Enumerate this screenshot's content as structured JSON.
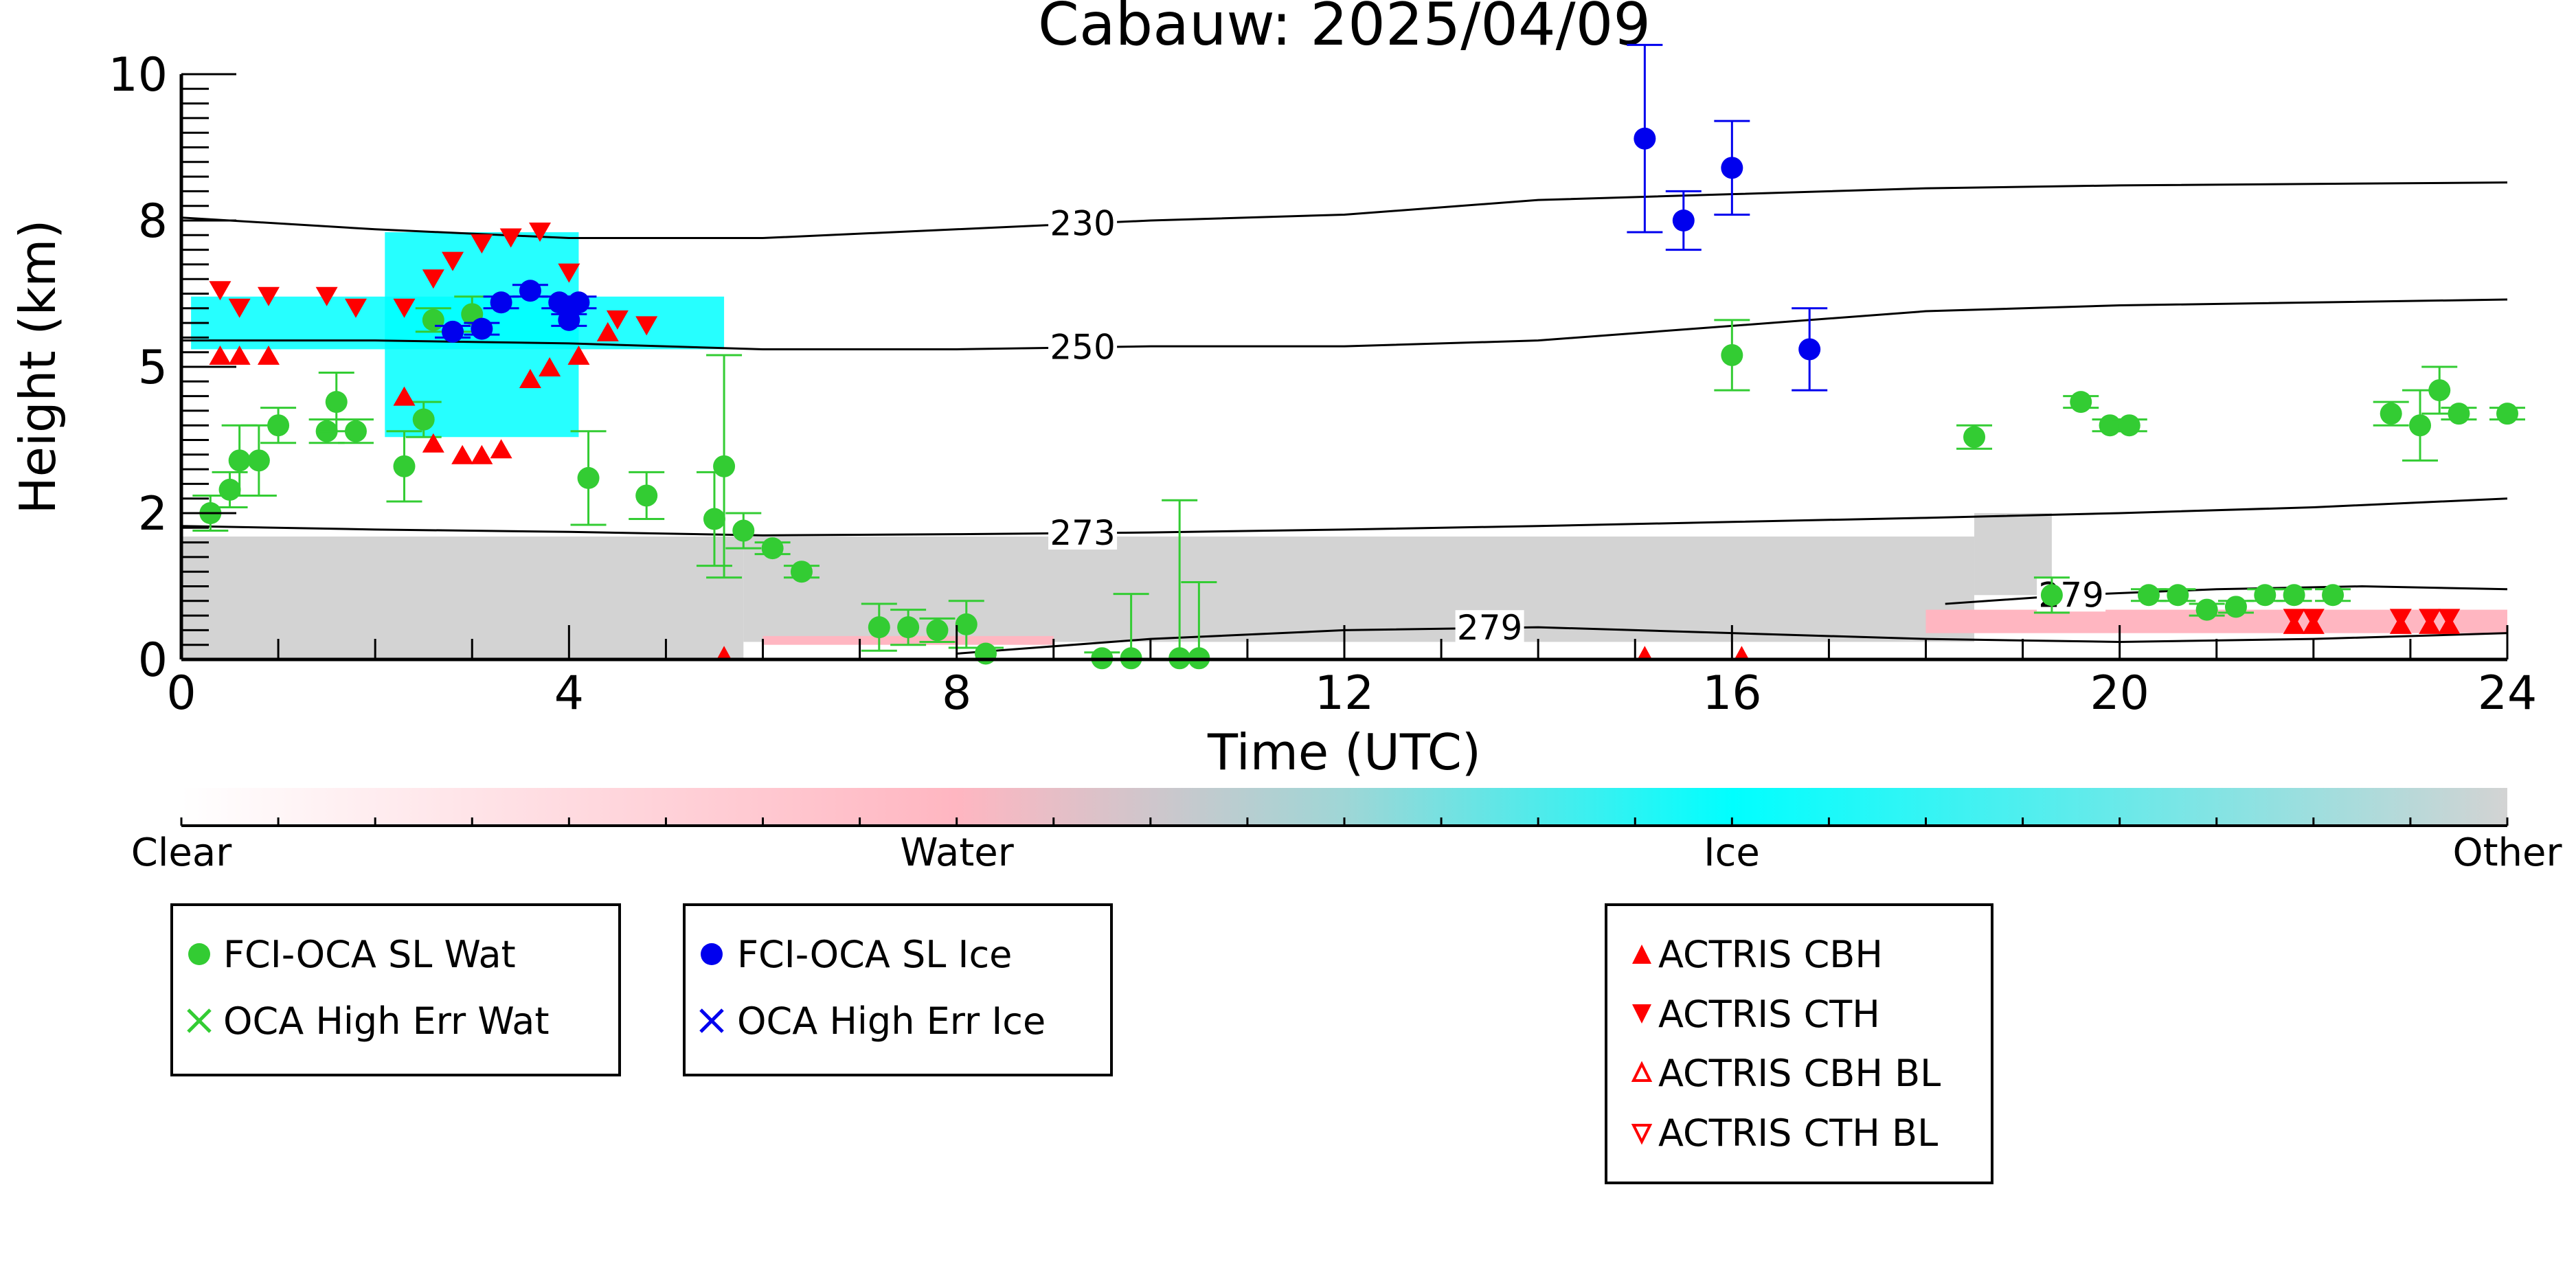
{
  "chart_data": {
    "type": "scatter",
    "title": "Cabauw: 2025/04/09",
    "xlabel": "Time (UTC)",
    "ylabel": "Height (km)",
    "xlim": [
      0,
      24
    ],
    "ylim": [
      0,
      10
    ],
    "x_ticks": [
      0,
      4,
      8,
      12,
      16,
      20,
      24
    ],
    "y_ticks": [
      {
        "v": 0,
        "label": "0"
      },
      {
        "v": 2.5,
        "label": "2"
      },
      {
        "v": 5,
        "label": "5"
      },
      {
        "v": 7.5,
        "label": "8"
      },
      {
        "v": 10,
        "label": "10"
      }
    ],
    "colorbar": {
      "labels": [
        "Clear",
        "Water",
        "Ice",
        "Other"
      ],
      "colors": [
        "#ffffff",
        "#ffb6c1",
        "#00ffff",
        "#d3d3d3"
      ]
    },
    "temperature_contours": [
      {
        "label": "230",
        "label_x": 9.3,
        "points": [
          [
            0,
            7.55
          ],
          [
            2,
            7.35
          ],
          [
            4,
            7.2
          ],
          [
            6,
            7.2
          ],
          [
            8,
            7.35
          ],
          [
            10,
            7.5
          ],
          [
            12,
            7.6
          ],
          [
            14,
            7.85
          ],
          [
            16,
            7.95
          ],
          [
            18,
            8.05
          ],
          [
            20,
            8.1
          ],
          [
            24,
            8.15
          ]
        ]
      },
      {
        "label": "250",
        "label_x": 9.3,
        "points": [
          [
            0,
            5.45
          ],
          [
            2,
            5.45
          ],
          [
            4,
            5.4
          ],
          [
            6,
            5.3
          ],
          [
            8,
            5.3
          ],
          [
            10,
            5.35
          ],
          [
            12,
            5.35
          ],
          [
            14,
            5.45
          ],
          [
            16,
            5.7
          ],
          [
            18,
            5.95
          ],
          [
            20,
            6.05
          ],
          [
            24,
            6.15
          ]
        ]
      },
      {
        "label": "273",
        "label_x": 9.3,
        "points": [
          [
            0,
            2.28
          ],
          [
            2,
            2.22
          ],
          [
            4,
            2.18
          ],
          [
            6,
            2.12
          ],
          [
            8,
            2.14
          ],
          [
            10,
            2.17
          ],
          [
            12,
            2.22
          ],
          [
            14,
            2.28
          ],
          [
            16,
            2.35
          ],
          [
            18,
            2.42
          ],
          [
            20,
            2.5
          ],
          [
            22,
            2.6
          ],
          [
            24,
            2.75
          ]
        ]
      },
      {
        "label": "279",
        "label_x": 13.5,
        "points": [
          [
            8,
            0.1
          ],
          [
            10,
            0.35
          ],
          [
            12,
            0.5
          ],
          [
            14,
            0.55
          ],
          [
            16,
            0.45
          ],
          [
            18,
            0.35
          ],
          [
            20,
            0.3
          ],
          [
            22,
            0.35
          ],
          [
            24,
            0.45
          ]
        ]
      },
      {
        "label": "279",
        "label_x": 19.5,
        "points": [
          [
            18.2,
            0.95
          ],
          [
            19.5,
            1.1
          ],
          [
            21,
            1.2
          ],
          [
            22.5,
            1.25
          ],
          [
            24,
            1.2
          ]
        ]
      }
    ],
    "cloud_regions": [
      {
        "phase": "Other",
        "x": [
          0,
          5.8
        ],
        "y": [
          0,
          2.1
        ]
      },
      {
        "phase": "Other",
        "x": [
          5.8,
          18.5
        ],
        "y": [
          0.3,
          2.1
        ]
      },
      {
        "phase": "Other",
        "x": [
          18.5,
          19.3
        ],
        "y": [
          1.1,
          2.5
        ]
      },
      {
        "phase": "Water",
        "x": [
          6.0,
          9.0
        ],
        "y": [
          0.25,
          0.4
        ]
      },
      {
        "phase": "Water",
        "x": [
          18.0,
          24.0
        ],
        "y": [
          0.45,
          0.85
        ]
      },
      {
        "phase": "Ice",
        "x": [
          0.1,
          5.6
        ],
        "y": [
          5.3,
          6.2
        ]
      },
      {
        "phase": "Ice",
        "x": [
          2.1,
          4.1
        ],
        "y": [
          3.8,
          7.3
        ]
      }
    ],
    "series": [
      {
        "name": "FCI-OCA SL Wat",
        "color": "#33cc33",
        "points": [
          {
            "x": 0.3,
            "y": 2.5,
            "err": 0.3
          },
          {
            "x": 0.5,
            "y": 2.9,
            "err": 0.3
          },
          {
            "x": 0.6,
            "y": 3.4,
            "err": 0.6
          },
          {
            "x": 0.8,
            "y": 3.4,
            "err": 0.6
          },
          {
            "x": 1.0,
            "y": 4.0,
            "err": 0.3
          },
          {
            "x": 1.5,
            "y": 3.9,
            "err": 0.2
          },
          {
            "x": 1.6,
            "y": 4.4,
            "err": 0.5
          },
          {
            "x": 1.8,
            "y": 3.9,
            "err": 0.2
          },
          {
            "x": 2.3,
            "y": 3.3,
            "err": 0.6
          },
          {
            "x": 2.5,
            "y": 4.1,
            "err": 0.3
          },
          {
            "x": 2.6,
            "y": 5.8,
            "err": 0.2
          },
          {
            "x": 3.0,
            "y": 5.9,
            "err": 0.3
          },
          {
            "x": 4.2,
            "y": 3.1,
            "err": 0.8
          },
          {
            "x": 4.8,
            "y": 2.8,
            "err": 0.4
          },
          {
            "x": 5.5,
            "y": 2.4,
            "err": 0.8
          },
          {
            "x": 5.6,
            "y": 3.3,
            "err": 1.9
          },
          {
            "x": 5.8,
            "y": 2.2,
            "err": 0.3
          },
          {
            "x": 6.1,
            "y": 1.9,
            "err": 0.1
          },
          {
            "x": 6.4,
            "y": 1.5,
            "err": 0.1
          },
          {
            "x": 7.2,
            "y": 0.55,
            "err": 0.4
          },
          {
            "x": 7.5,
            "y": 0.55,
            "err": 0.3
          },
          {
            "x": 7.8,
            "y": 0.5,
            "err": 0.2
          },
          {
            "x": 8.1,
            "y": 0.6,
            "err": 0.4
          },
          {
            "x": 8.3,
            "y": 0.1,
            "err": 0.1
          },
          {
            "x": 9.5,
            "y": 0.02,
            "err": 0.1
          },
          {
            "x": 9.8,
            "y": 0.02,
            "err": 1.1
          },
          {
            "x": 10.3,
            "y": 0.02,
            "err": 2.7
          },
          {
            "x": 10.5,
            "y": 0.02,
            "err": 1.3
          },
          {
            "x": 16.0,
            "y": 5.2,
            "err": 0.6
          },
          {
            "x": 18.5,
            "y": 3.8,
            "err": 0.2
          },
          {
            "x": 19.3,
            "y": 1.1,
            "err": 0.3
          },
          {
            "x": 19.6,
            "y": 4.4,
            "err": 0.1
          },
          {
            "x": 19.9,
            "y": 4.0,
            "err": 0.1
          },
          {
            "x": 20.1,
            "y": 4.0,
            "err": 0.1
          },
          {
            "x": 20.3,
            "y": 1.1,
            "err": 0.1
          },
          {
            "x": 20.6,
            "y": 1.1,
            "err": 0.1
          },
          {
            "x": 20.9,
            "y": 0.85,
            "err": 0.1
          },
          {
            "x": 21.2,
            "y": 0.9,
            "err": 0.1
          },
          {
            "x": 21.5,
            "y": 1.1,
            "err": 0.1
          },
          {
            "x": 21.8,
            "y": 1.1,
            "err": 0.1
          },
          {
            "x": 22.2,
            "y": 1.1,
            "err": 0.1
          },
          {
            "x": 22.8,
            "y": 4.2,
            "err": 0.2
          },
          {
            "x": 23.1,
            "y": 4.0,
            "err": 0.6
          },
          {
            "x": 23.3,
            "y": 4.6,
            "err": 0.4
          },
          {
            "x": 23.5,
            "y": 4.2,
            "err": 0.1
          },
          {
            "x": 24.0,
            "y": 4.2,
            "err": 0.1
          }
        ]
      },
      {
        "name": "FCI-OCA SL Ice",
        "color": "#0000ee",
        "points": [
          {
            "x": 2.8,
            "y": 5.6,
            "err": 0.1
          },
          {
            "x": 3.1,
            "y": 5.65,
            "err": 0.1
          },
          {
            "x": 3.3,
            "y": 6.1,
            "err": 0.1
          },
          {
            "x": 3.6,
            "y": 6.3,
            "err": 0.1
          },
          {
            "x": 3.9,
            "y": 6.1,
            "err": 0.1
          },
          {
            "x": 4.0,
            "y": 5.8,
            "err": 0.1
          },
          {
            "x": 4.1,
            "y": 6.1,
            "err": 0.1
          },
          {
            "x": 15.1,
            "y": 8.9,
            "err": 1.6
          },
          {
            "x": 15.5,
            "y": 7.5,
            "err": 0.5
          },
          {
            "x": 16.0,
            "y": 8.4,
            "err": 0.8
          },
          {
            "x": 16.8,
            "y": 5.3,
            "err": 0.7
          }
        ]
      },
      {
        "name": "ACTRIS CBH",
        "color": "#ff0000",
        "points": [
          {
            "x": 0.4,
            "y": 5.2
          },
          {
            "x": 0.6,
            "y": 5.2
          },
          {
            "x": 0.9,
            "y": 5.2
          },
          {
            "x": 2.3,
            "y": 4.5
          },
          {
            "x": 2.6,
            "y": 3.7
          },
          {
            "x": 2.9,
            "y": 3.5
          },
          {
            "x": 3.1,
            "y": 3.5
          },
          {
            "x": 3.3,
            "y": 3.6
          },
          {
            "x": 3.6,
            "y": 4.8
          },
          {
            "x": 3.8,
            "y": 5.0
          },
          {
            "x": 4.1,
            "y": 5.2
          },
          {
            "x": 4.4,
            "y": 5.6
          },
          {
            "x": 21.8,
            "y": 0.6
          },
          {
            "x": 22.0,
            "y": 0.6
          },
          {
            "x": 22.9,
            "y": 0.6
          },
          {
            "x": 23.2,
            "y": 0.6
          },
          {
            "x": 23.4,
            "y": 0.6
          }
        ]
      },
      {
        "name": "ACTRIS CTH",
        "color": "#ff0000",
        "points": [
          {
            "x": 0.4,
            "y": 6.3
          },
          {
            "x": 0.6,
            "y": 6.0
          },
          {
            "x": 0.9,
            "y": 6.2
          },
          {
            "x": 1.5,
            "y": 6.2
          },
          {
            "x": 1.8,
            "y": 6.0
          },
          {
            "x": 2.3,
            "y": 6.0
          },
          {
            "x": 2.6,
            "y": 6.5
          },
          {
            "x": 2.8,
            "y": 6.8
          },
          {
            "x": 3.1,
            "y": 7.1
          },
          {
            "x": 3.4,
            "y": 7.2
          },
          {
            "x": 3.7,
            "y": 7.3
          },
          {
            "x": 4.0,
            "y": 6.6
          },
          {
            "x": 4.5,
            "y": 5.8
          },
          {
            "x": 4.8,
            "y": 5.7
          },
          {
            "x": 21.8,
            "y": 0.7
          },
          {
            "x": 22.0,
            "y": 0.7
          },
          {
            "x": 22.9,
            "y": 0.7
          },
          {
            "x": 23.2,
            "y": 0.7
          },
          {
            "x": 23.4,
            "y": 0.7
          }
        ]
      },
      {
        "name": "ACTRIS CBH BL",
        "color": "#ff0000",
        "points": [
          {
            "x": 5.6,
            "y": 0.02
          },
          {
            "x": 15.1,
            "y": 0.02
          },
          {
            "x": 16.1,
            "y": 0.02
          }
        ]
      }
    ],
    "legend_groups": [
      {
        "entries": [
          {
            "label": "FCI-OCA SL Wat",
            "marker": "circle",
            "color": "#33cc33"
          },
          {
            "label": "OCA High Err Wat",
            "marker": "x",
            "color": "#33cc33"
          }
        ]
      },
      {
        "entries": [
          {
            "label": "FCI-OCA SL Ice",
            "marker": "circle",
            "color": "#0000ee"
          },
          {
            "label": "OCA High Err Ice",
            "marker": "x",
            "color": "#0000ee"
          }
        ]
      },
      {
        "entries": [
          {
            "label": "ACTRIS CBH",
            "marker": "tri-up",
            "color": "#ff0000"
          },
          {
            "label": "ACTRIS CTH",
            "marker": "tri-down",
            "color": "#ff0000"
          },
          {
            "label": "ACTRIS CBH BL",
            "marker": "tri-up-open",
            "color": "#ff0000"
          },
          {
            "label": "ACTRIS CTH BL",
            "marker": "tri-down-open",
            "color": "#ff0000"
          }
        ]
      }
    ]
  }
}
